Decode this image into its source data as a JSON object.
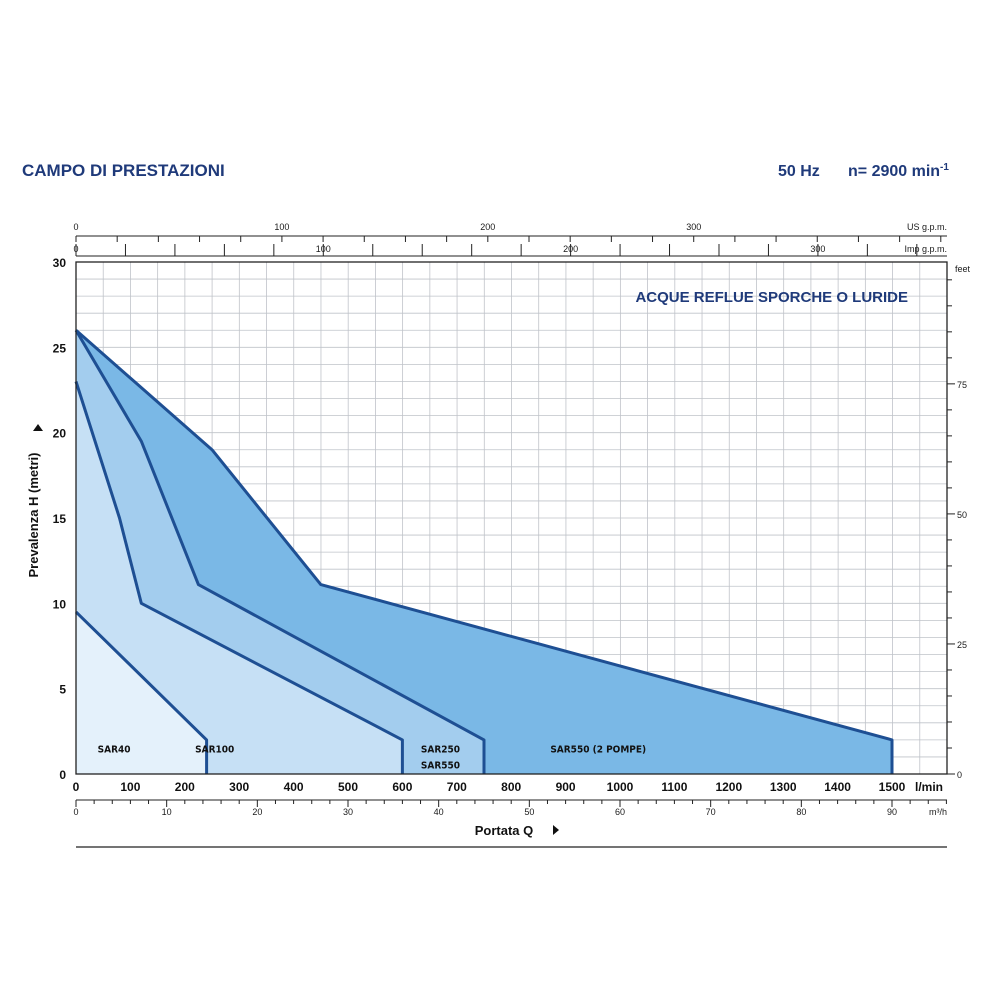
{
  "header": {
    "title": "CAMPO DI PRESTAZIONI",
    "frequency": "50 Hz",
    "speed_prefix": "n= 2900 min",
    "speed_exp": "-1"
  },
  "colors": {
    "title": "#1f3a7a",
    "outline": "#1e4f93",
    "grid": "#bfc3c9",
    "fills": [
      "#e4f1fb",
      "#c6e0f5",
      "#a3cdee",
      "#7ab8e6"
    ]
  },
  "chart_data": {
    "type": "area",
    "title": "ACQUE REFLUE SPORCHE O LURIDE",
    "xlabel": "Portata Q",
    "ylabel": "Prevalenza H (metri)",
    "xunit": "l/min",
    "xlim": [
      0,
      1600
    ],
    "ylim": [
      0,
      30
    ],
    "x_ticks": [
      0,
      100,
      200,
      300,
      400,
      500,
      600,
      700,
      800,
      900,
      1000,
      1100,
      1200,
      1300,
      1400,
      1500
    ],
    "y_ticks": [
      0,
      5,
      10,
      15,
      20,
      25,
      30
    ],
    "grid": true,
    "secondary_axes": {
      "us_gpm": {
        "label": "US g.p.m.",
        "ticks": [
          0,
          100,
          200,
          300
        ]
      },
      "imp_gpm": {
        "label": "Imp g.p.m.",
        "ticks": [
          0,
          100,
          200,
          300
        ]
      },
      "m3h": {
        "label": "m³/h",
        "ticks": [
          0,
          10,
          20,
          30,
          40,
          50,
          60,
          70,
          80,
          90
        ]
      },
      "feet": {
        "label": "feet",
        "ticks": [
          0,
          25,
          50,
          75
        ]
      }
    },
    "series": [
      {
        "name": "SAR550 (2 POMPE)",
        "points": [
          [
            0,
            26
          ],
          [
            250,
            19
          ],
          [
            450,
            11.1
          ],
          [
            1500,
            2
          ],
          [
            1500,
            0
          ],
          [
            0,
            0
          ]
        ]
      },
      {
        "name": "SAR250 / SAR550",
        "points": [
          [
            0,
            26
          ],
          [
            120,
            19.5
          ],
          [
            225,
            11.1
          ],
          [
            750,
            2
          ],
          [
            750,
            0
          ],
          [
            0,
            0
          ]
        ]
      },
      {
        "name": "SAR100",
        "points": [
          [
            0,
            23
          ],
          [
            80,
            15
          ],
          [
            120,
            10
          ],
          [
            600,
            2
          ],
          [
            600,
            0
          ],
          [
            0,
            0
          ]
        ]
      },
      {
        "name": "SAR40",
        "points": [
          [
            0,
            9.5
          ],
          [
            240,
            2
          ],
          [
            240,
            0
          ],
          [
            0,
            0
          ]
        ]
      }
    ],
    "region_labels": [
      {
        "text": "SAR40",
        "x": 70,
        "y": 1.5
      },
      {
        "text": "SAR100",
        "x": 255,
        "y": 1.5
      },
      {
        "text": "SAR250",
        "x": 670,
        "y": 1.5
      },
      {
        "text": "SAR550",
        "x": 670,
        "y": 0.55
      },
      {
        "text": "SAR550 (2 POMPE)",
        "x": 960,
        "y": 1.5
      }
    ]
  }
}
